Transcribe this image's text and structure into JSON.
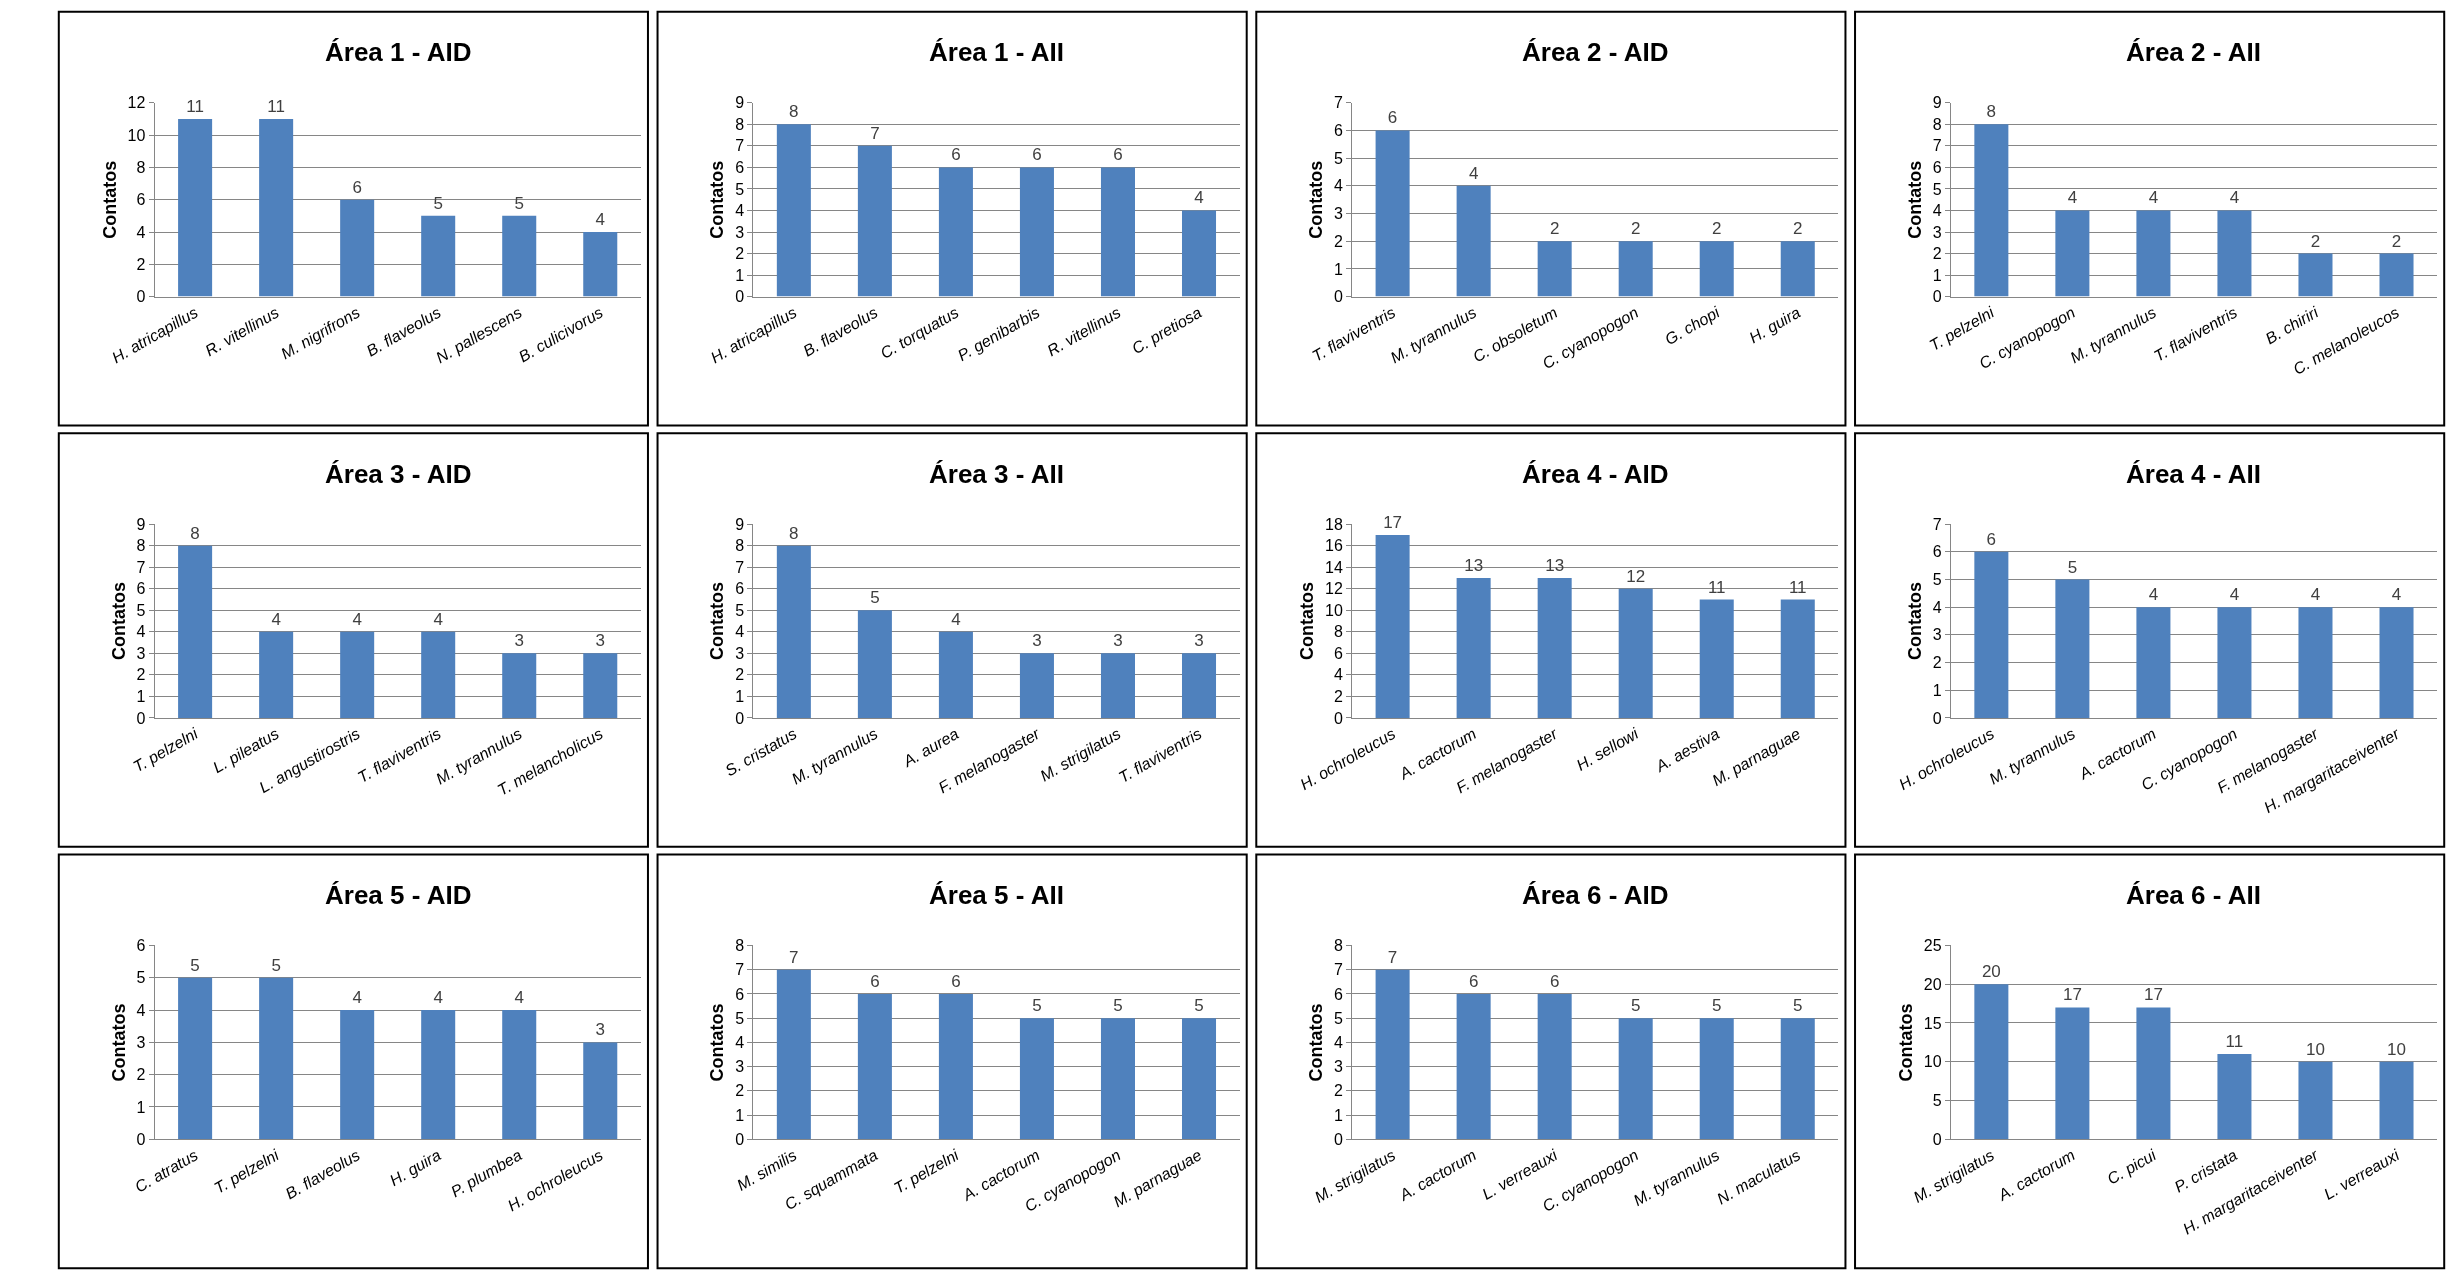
{
  "chart_data": [
    {
      "type": "bar",
      "title": "Área 1 - AID",
      "ylabel": "Contatos",
      "categories": [
        "H. atricapillus",
        "R. vitellinus",
        "M. nigrifrons",
        "B. flaveolus",
        "N. pallescens",
        "B. culicivorus"
      ],
      "values": [
        11,
        11,
        6,
        5,
        5,
        4
      ],
      "color": "#4f81bd",
      "ylim": [
        0,
        12
      ],
      "yticks": [
        0,
        2,
        4,
        6,
        8,
        10,
        12
      ],
      "grid": "y",
      "data_labels": true
    },
    {
      "type": "bar",
      "title": "Área 1 - AII",
      "ylabel": "Contatos",
      "categories": [
        "H. atricapillus",
        "B. flaveolus",
        "C. torquatus",
        "P. genibarbis",
        "R. vitellinus",
        "C. pretiosa"
      ],
      "values": [
        8,
        7,
        6,
        6,
        6,
        4
      ],
      "color": "#4f81bd",
      "ylim": [
        0,
        9
      ],
      "yticks": [
        0,
        1,
        2,
        3,
        4,
        5,
        6,
        7,
        8,
        9
      ],
      "grid": "y",
      "data_labels": true
    },
    {
      "type": "bar",
      "title": "Área 2 - AID",
      "ylabel": "Contatos",
      "categories": [
        "T. flaviventris",
        "M. tyrannulus",
        "C. obsoletum",
        "C. cyanopogon",
        "G. chopi",
        "H. guira"
      ],
      "values": [
        6,
        4,
        2,
        2,
        2,
        2
      ],
      "color": "#4f81bd",
      "ylim": [
        0,
        7
      ],
      "yticks": [
        0,
        1,
        2,
        3,
        4,
        5,
        6,
        7
      ],
      "grid": "y",
      "data_labels": true
    },
    {
      "type": "bar",
      "title": "Área 2 - AII",
      "ylabel": "Contatos",
      "categories": [
        "T. pelzelni",
        "C. cyanopogon",
        "M. tyrannulus",
        "T. flaviventris",
        "B. chiriri",
        "C. melanoleucos"
      ],
      "values": [
        8,
        4,
        4,
        4,
        2,
        2
      ],
      "color": "#4f81bd",
      "ylim": [
        0,
        9
      ],
      "yticks": [
        0,
        1,
        2,
        3,
        4,
        5,
        6,
        7,
        8,
        9
      ],
      "grid": "y",
      "data_labels": true
    },
    {
      "type": "bar",
      "title": "Área 3 - AID",
      "ylabel": "Contatos",
      "categories": [
        "T. pelzelni",
        "L. pileatus",
        "L. angustirostris",
        "T. flaviventris",
        "M. tyrannulus",
        "T. melancholicus"
      ],
      "values": [
        8,
        4,
        4,
        4,
        3,
        3
      ],
      "color": "#4f81bd",
      "ylim": [
        0,
        9
      ],
      "yticks": [
        0,
        1,
        2,
        3,
        4,
        5,
        6,
        7,
        8,
        9
      ],
      "grid": "y",
      "data_labels": true
    },
    {
      "type": "bar",
      "title": "Área 3 - AII",
      "ylabel": "Contatos",
      "categories": [
        "S. cristatus",
        "M. tyrannulus",
        "A. aurea",
        "F. melanogaster",
        "M. strigilatus",
        "T. flaviventris"
      ],
      "values": [
        8,
        5,
        4,
        3,
        3,
        3
      ],
      "color": "#4f81bd",
      "ylim": [
        0,
        9
      ],
      "yticks": [
        0,
        1,
        2,
        3,
        4,
        5,
        6,
        7,
        8,
        9
      ],
      "grid": "y",
      "data_labels": true
    },
    {
      "type": "bar",
      "title": "Área 4 - AID",
      "ylabel": "Contatos",
      "categories": [
        "H. ochroleucus",
        "A. cactorum",
        "F. melanogaster",
        "H. sellowi",
        "A. aestiva",
        "M. parnaguae"
      ],
      "values": [
        17,
        13,
        13,
        12,
        11,
        11
      ],
      "color": "#4f81bd",
      "ylim": [
        0,
        18
      ],
      "yticks": [
        0,
        2,
        4,
        6,
        8,
        10,
        12,
        14,
        16,
        18
      ],
      "grid": "y",
      "data_labels": true
    },
    {
      "type": "bar",
      "title": "Área 4 - AII",
      "ylabel": "Contatos",
      "categories": [
        "H. ochroleucus",
        "M. tyrannulus",
        "A. cactorum",
        "C. cyanopogon",
        "F. melanogaster",
        "H. margaritaceiventer"
      ],
      "values": [
        6,
        5,
        4,
        4,
        4,
        4
      ],
      "color": "#4f81bd",
      "ylim": [
        0,
        7
      ],
      "yticks": [
        0,
        1,
        2,
        3,
        4,
        5,
        6,
        7
      ],
      "grid": "y",
      "data_labels": true
    },
    {
      "type": "bar",
      "title": "Área 5 - AID",
      "ylabel": "Contatos",
      "categories": [
        "C. atratus",
        "T. pelzelni",
        "B. flaveolus",
        "H. guira",
        "P. plumbea",
        "H. ochroleucus"
      ],
      "values": [
        5,
        5,
        4,
        4,
        4,
        3
      ],
      "color": "#4f81bd",
      "ylim": [
        0,
        6
      ],
      "yticks": [
        0,
        1,
        2,
        3,
        4,
        5,
        6
      ],
      "grid": "y",
      "data_labels": true
    },
    {
      "type": "bar",
      "title": "Área 5 - AII",
      "ylabel": "Contatos",
      "categories": [
        "M. similis",
        "C. squammata",
        "T. pelzelni",
        "A. cactorum",
        "C. cyanopogon",
        "M. parnaguae"
      ],
      "values": [
        7,
        6,
        6,
        5,
        5,
        5
      ],
      "color": "#4f81bd",
      "ylim": [
        0,
        8
      ],
      "yticks": [
        0,
        1,
        2,
        3,
        4,
        5,
        6,
        7,
        8
      ],
      "grid": "y",
      "data_labels": true
    },
    {
      "type": "bar",
      "title": "Área 6 - AID",
      "ylabel": "Contatos",
      "categories": [
        "M. strigilatus",
        "A. cactorum",
        "L. verreauxi",
        "C. cyanopogon",
        "M. tyrannulus",
        "N. maculatus"
      ],
      "values": [
        7,
        6,
        6,
        5,
        5,
        5
      ],
      "color": "#4f81bd",
      "ylim": [
        0,
        8
      ],
      "yticks": [
        0,
        1,
        2,
        3,
        4,
        5,
        6,
        7,
        8
      ],
      "grid": "y",
      "data_labels": true
    },
    {
      "type": "bar",
      "title": "Área 6 - AII",
      "ylabel": "Contatos",
      "categories": [
        "M. strigilatus",
        "A. cactorum",
        "C. picui",
        "P. cristata",
        "H. margaritaceiventer",
        "L. verreauxi"
      ],
      "values": [
        20,
        17,
        17,
        11,
        10,
        10
      ],
      "color": "#4f81bd",
      "ylim": [
        0,
        25
      ],
      "yticks": [
        0,
        5,
        10,
        15,
        20,
        25
      ],
      "grid": "y",
      "data_labels": true
    }
  ]
}
